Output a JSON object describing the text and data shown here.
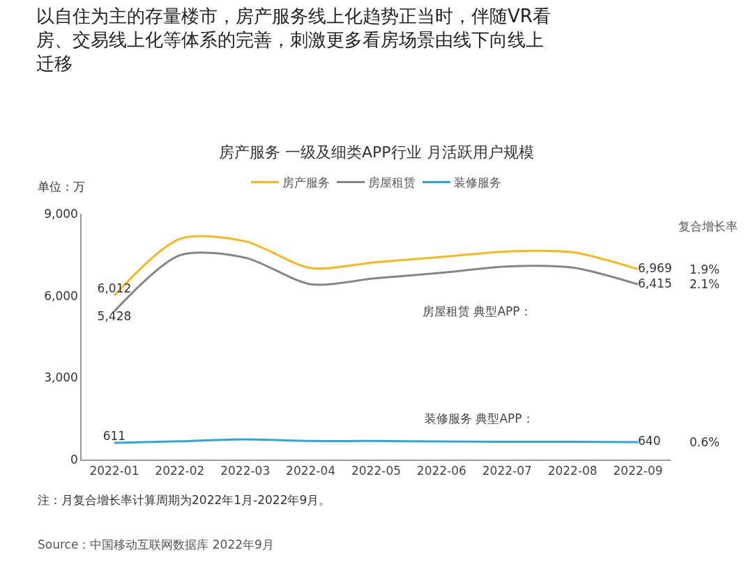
{
  "chart_data": {
    "type": "line",
    "title": "以自住为主的存量楼市，房产服务线上化趋势正当时，伴随VR看房、交易线上化等体系的完善，刺激更多看房场景由线下向线上迁移",
    "subtitle": "房产服务 一级及细类APP行业 月活跃用户规模",
    "ylabel": "单位：万",
    "categories": [
      "2022-01",
      "2022-02",
      "2022-03",
      "2022-04",
      "2022-05",
      "2022-06",
      "2022-07",
      "2022-08",
      "2022-09"
    ],
    "series": [
      {
        "name": "房产服务",
        "color": "#f5b81c",
        "values": [
          6012,
          8080,
          7990,
          7010,
          7230,
          7420,
          7620,
          7590,
          6969
        ],
        "value_labels": [
          "6,012",
          null,
          null,
          null,
          null,
          null,
          null,
          null,
          "6,969"
        ]
      },
      {
        "name": "房屋租赁",
        "color": "#858585",
        "values": [
          5428,
          7480,
          7390,
          6420,
          6640,
          6840,
          7070,
          7030,
          6415
        ],
        "value_labels": [
          "5,428",
          null,
          null,
          null,
          null,
          null,
          null,
          null,
          "6,415"
        ]
      },
      {
        "name": "装修服务",
        "color": "#2ba6dc",
        "values": [
          611,
          670,
          740,
          680,
          680,
          660,
          650,
          650,
          640
        ],
        "value_labels": [
          "611",
          null,
          null,
          null,
          null,
          null,
          null,
          null,
          "640"
        ]
      }
    ],
    "ylim": [
      0,
      9000
    ],
    "yticks": [
      0,
      {
        "value": 3000,
        "label": "3,000"
      },
      {
        "value": 6000,
        "label": "6,000"
      },
      {
        "value": 9000,
        "label": "9,000"
      }
    ],
    "grid": false,
    "legend": "top",
    "marker": "none",
    "line_style": "solid",
    "annotations": [
      "复合增长率",
      "1.9%",
      "2.1%",
      "0.6%",
      "房屋租赁 典型APP：",
      "装修服务 典型APP：",
      "注：月复合增长率计算周期为2022年1月-2022年9月。",
      "Source：中国移动互联网数据库 2022年9月"
    ]
  }
}
